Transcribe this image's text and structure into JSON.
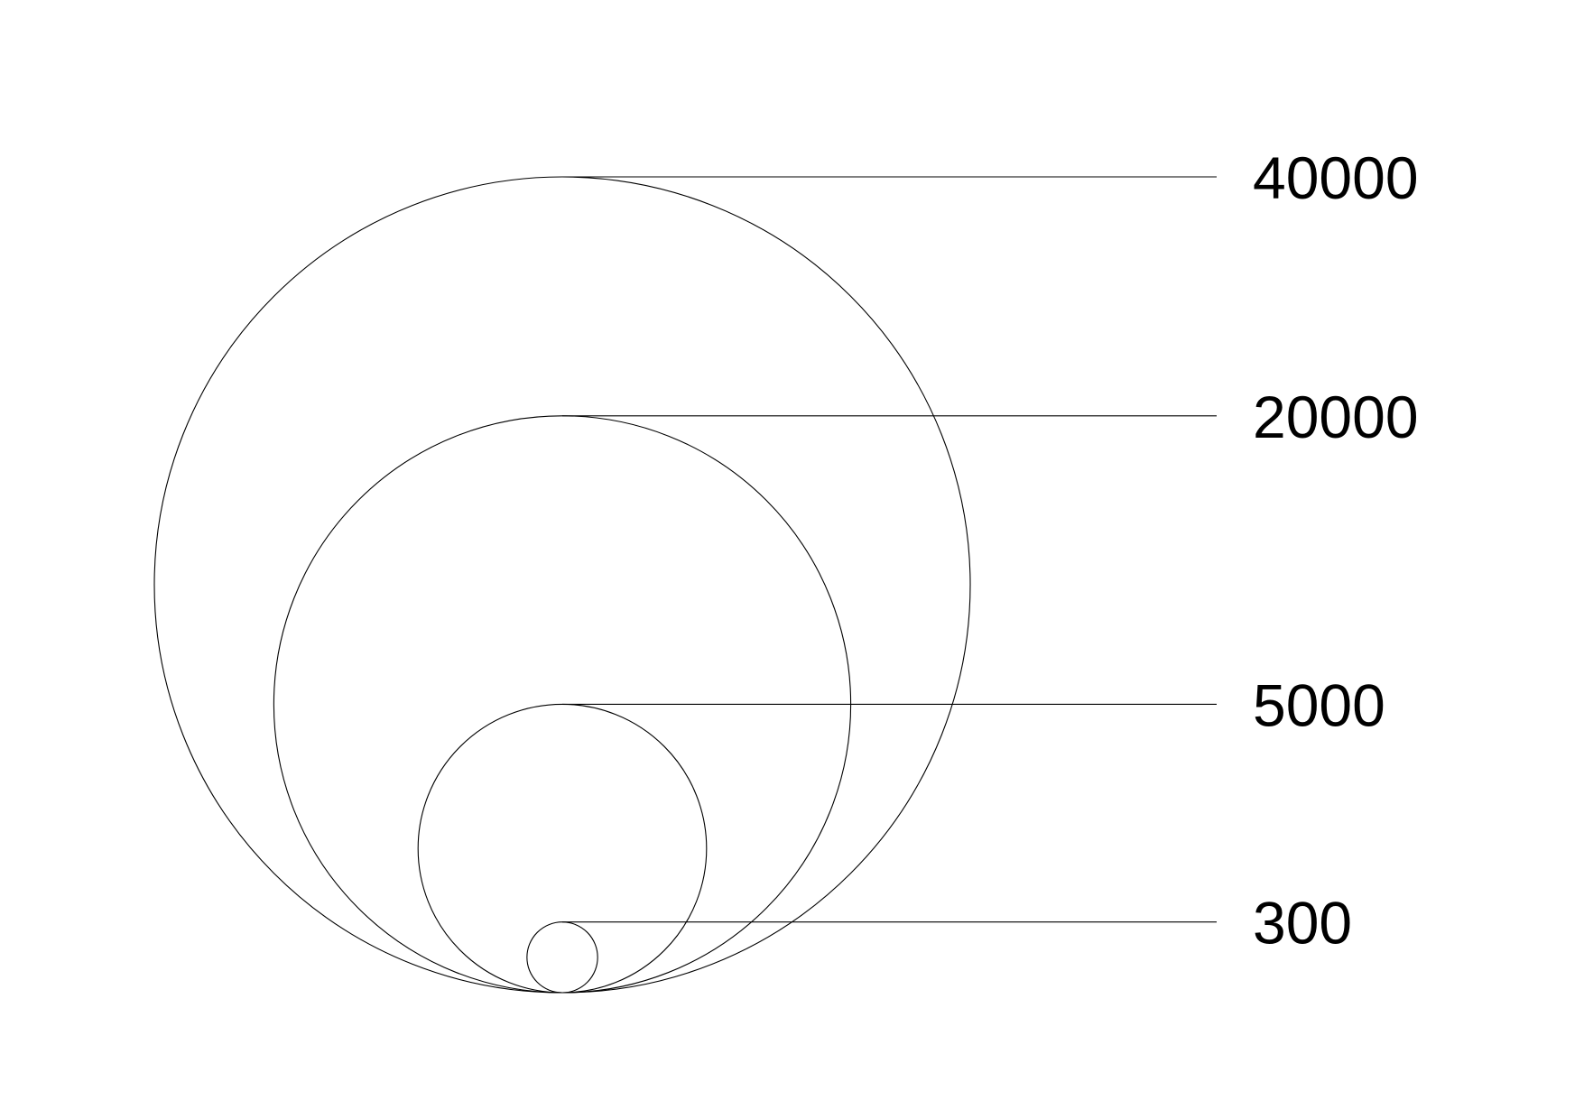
{
  "chart_data": {
    "type": "bubble-size-legend",
    "title": "",
    "values": [
      40000,
      20000,
      5000,
      300
    ],
    "labels": [
      "40000",
      "20000",
      "5000",
      "300"
    ],
    "scale": "area",
    "stroke_color": "#000000",
    "fill": "none"
  }
}
